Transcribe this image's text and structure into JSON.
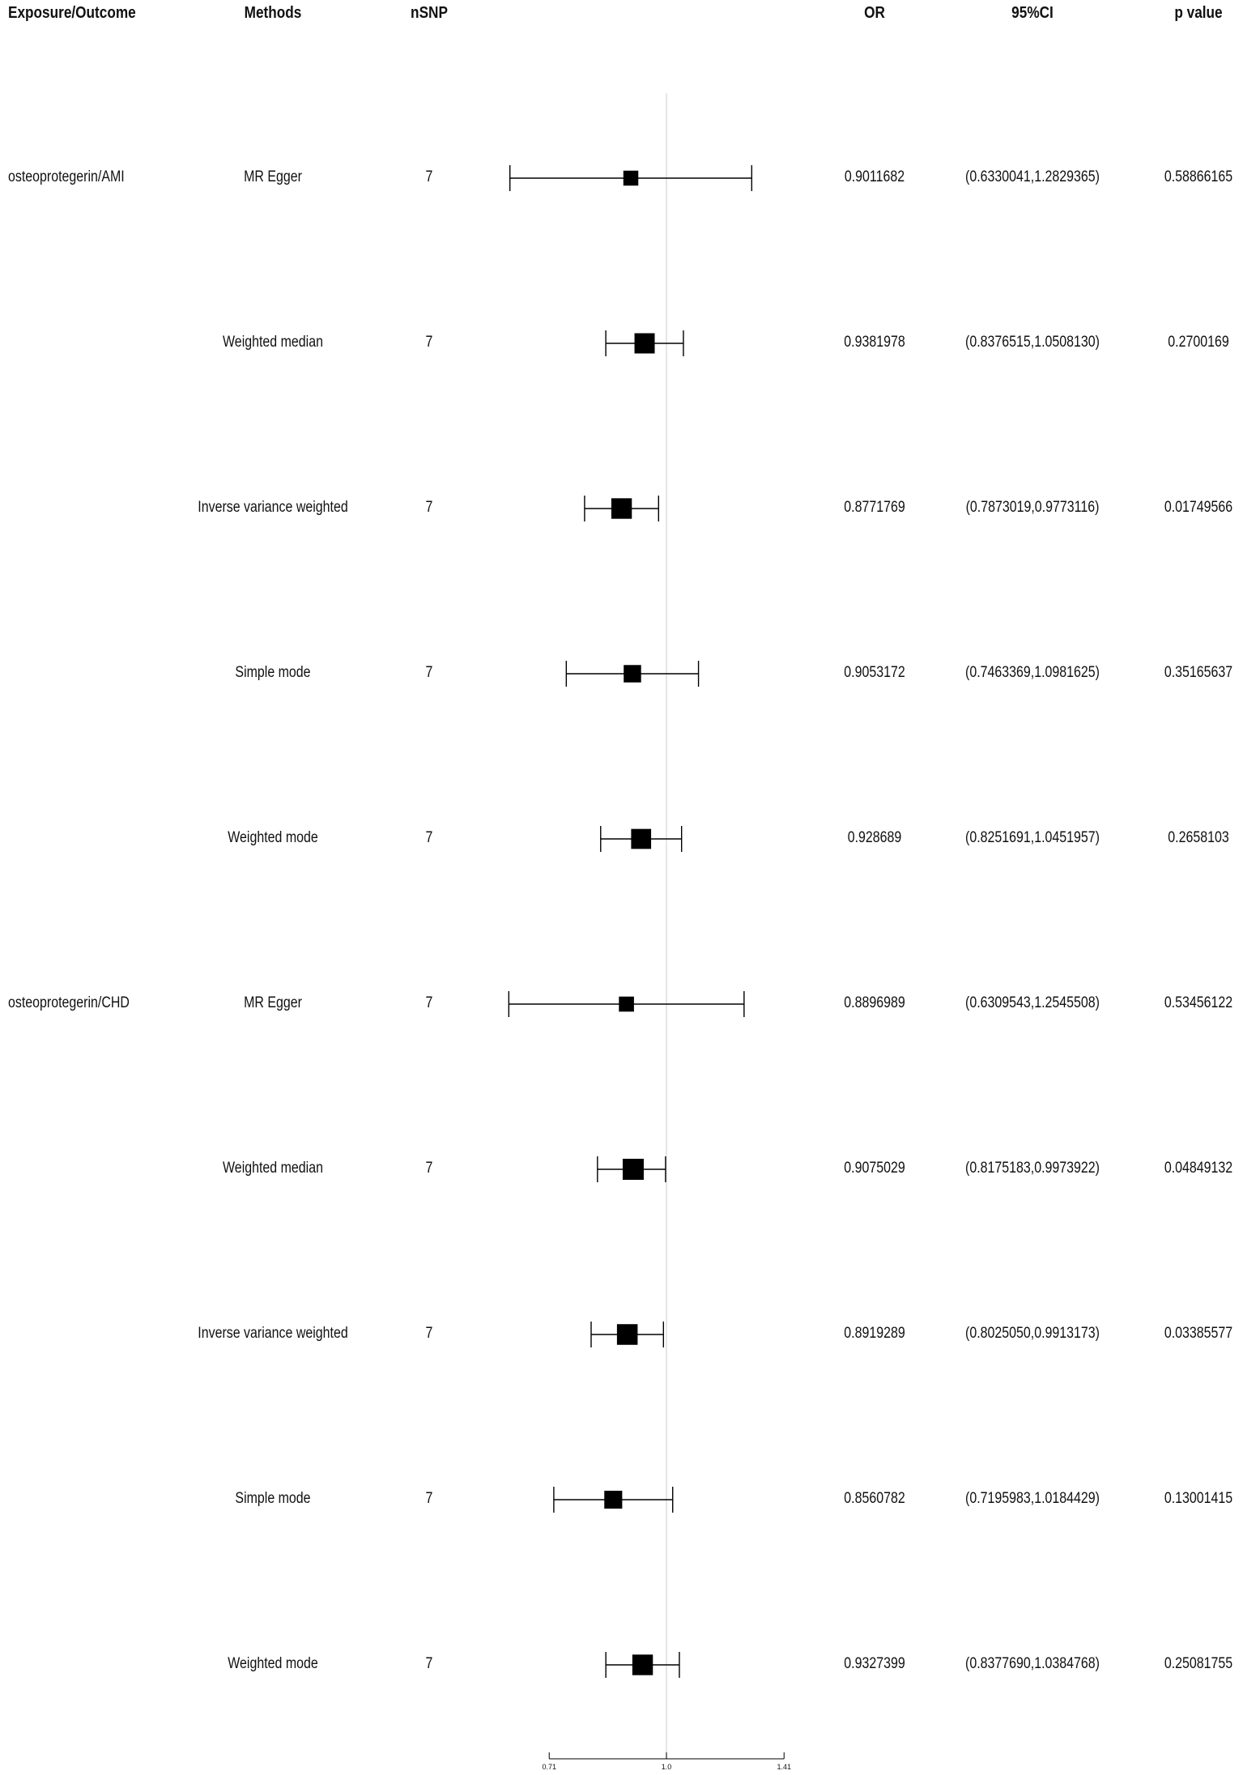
{
  "headers": {
    "exposure": "Exposure/Outcome",
    "methods": "Methods",
    "nsnp": "nSNP",
    "or": "OR",
    "ci": "95%CI",
    "p": "p value"
  },
  "rows": [
    {
      "exposure": "osteoprotegerin/AMI",
      "method": "MR Egger",
      "nsnp": "7",
      "or": "0.9011682",
      "ci": "(0.6330041,1.2829365)",
      "p": "0.58866165"
    },
    {
      "exposure": "",
      "method": "Weighted median",
      "nsnp": "7",
      "or": "0.9381978",
      "ci": "(0.8376515,1.0508130)",
      "p": "0.2700169"
    },
    {
      "exposure": "",
      "method": "Inverse variance weighted",
      "nsnp": "7",
      "or": "0.8771769",
      "ci": "(0.7873019,0.9773116)",
      "p": "0.01749566"
    },
    {
      "exposure": "",
      "method": "Simple mode",
      "nsnp": "7",
      "or": "0.9053172",
      "ci": "(0.7463369,1.0981625)",
      "p": "0.35165637"
    },
    {
      "exposure": "",
      "method": "Weighted mode",
      "nsnp": "7",
      "or": "0.928689",
      "ci": "(0.8251691,1.0451957)",
      "p": "0.2658103"
    },
    {
      "exposure": "osteoprotegerin/CHD",
      "method": "MR Egger",
      "nsnp": "7",
      "or": "0.8896989",
      "ci": "(0.6309543,1.2545508)",
      "p": "0.53456122"
    },
    {
      "exposure": "",
      "method": "Weighted median",
      "nsnp": "7",
      "or": "0.9075029",
      "ci": "(0.8175183,0.9973922)",
      "p": "0.04849132"
    },
    {
      "exposure": "",
      "method": "Inverse variance weighted",
      "nsnp": "7",
      "or": "0.8919289",
      "ci": "(0.8025050,0.9913173)",
      "p": "0.03385577"
    },
    {
      "exposure": "",
      "method": "Simple mode",
      "nsnp": "7",
      "or": "0.8560782",
      "ci": "(0.7195983,1.0184429)",
      "p": "0.13001415"
    },
    {
      "exposure": "",
      "method": "Weighted mode",
      "nsnp": "7",
      "or": "0.9327399",
      "ci": "(0.8377690,1.0384768)",
      "p": "0.25081755"
    }
  ],
  "chart_data": {
    "type": "scatter",
    "subtype": "forest",
    "x_scale": "log",
    "reference_line": 1.0,
    "xticks": [
      0.71,
      1.0,
      1.41
    ],
    "xtick_labels": [
      "0.71",
      "1.0",
      "1.41"
    ],
    "series": [
      {
        "points": [
          {
            "or": 0.9011682,
            "lower": 0.6330041,
            "upper": 1.2829365
          },
          {
            "or": 0.9381978,
            "lower": 0.8376515,
            "upper": 1.050813
          },
          {
            "or": 0.8771769,
            "lower": 0.7873019,
            "upper": 0.9773116
          },
          {
            "or": 0.9053172,
            "lower": 0.7463369,
            "upper": 1.0981625
          },
          {
            "or": 0.928689,
            "lower": 0.8251691,
            "upper": 1.0451957
          },
          {
            "or": 0.8896989,
            "lower": 0.6309543,
            "upper": 1.2545508
          },
          {
            "or": 0.9075029,
            "lower": 0.8175183,
            "upper": 0.9973922
          },
          {
            "or": 0.8919289,
            "lower": 0.802505,
            "upper": 0.9913173
          },
          {
            "or": 0.8560782,
            "lower": 0.7195983,
            "upper": 1.0184429
          },
          {
            "or": 0.9327399,
            "lower": 0.837769,
            "upper": 1.0384768
          }
        ]
      }
    ],
    "colors": {
      "marker": "#000000",
      "reference": "#d9d9d9",
      "axis": "#000000"
    }
  }
}
